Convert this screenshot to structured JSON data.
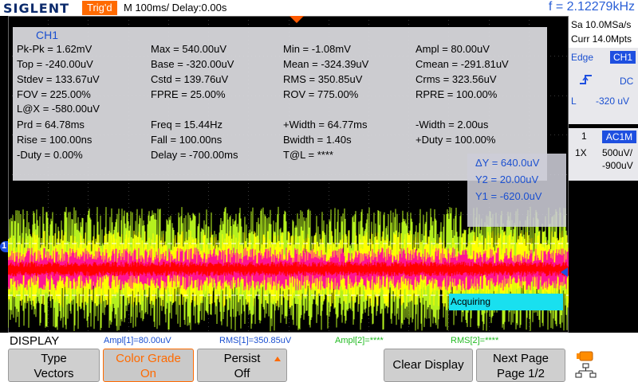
{
  "topbar": {
    "logo": "SIGLENT",
    "trig_status": "Trig'd",
    "timebase": "M 100ms/  Delay:0.00s",
    "frequency": "f = 2.12279kHz"
  },
  "measurements": {
    "title": "CH1",
    "rows": [
      [
        "Pk-Pk = 1.62mV",
        "Max = 540.00uV",
        "Min = -1.08mV",
        "Ampl = 80.00uV"
      ],
      [
        "Top = -240.00uV",
        "Base = -320.00uV",
        "Mean = -324.39uV",
        "Cmean = -291.81uV"
      ],
      [
        "Stdev = 133.67uV",
        "Cstd = 139.76uV",
        "RMS = 350.85uV",
        "Crms = 323.56uV"
      ],
      [
        "FOV = 225.00%",
        "FPRE = 25.00%",
        "ROV = 775.00%",
        "RPRE = 100.00%"
      ],
      [
        "L@X = -580.00uV",
        "",
        "",
        ""
      ],
      [
        "Prd = 64.78ms",
        "Freq = 15.44Hz",
        "+Width = 64.77ms",
        "-Width = 2.00us"
      ],
      [
        "Rise = 100.00ns",
        "Fall = 100.00ns",
        "Bwidth = 1.40s",
        "+Duty = 100.00%"
      ],
      [
        "-Duty = 0.00%",
        "Delay = -700.00ms",
        "T@L = ****",
        ""
      ]
    ]
  },
  "cursors": {
    "delta_y": "ΔY = 640.0uV",
    "y2": "Y2 = 20.00uV",
    "y1": "Y1 = -620.0uV"
  },
  "acquiring": "Acquiring",
  "channel_marker": "1",
  "right_panel": {
    "sample_rate": "Sa 10.0MSa/s",
    "memory": "Curr 14.0Mpts",
    "trigger_type": "Edge",
    "trigger_source": "CH1",
    "trigger_coupling": "DC",
    "trigger_level_label": "L",
    "trigger_level": "-320 uV",
    "channel_number": "1",
    "channel_coupling": "AC1M",
    "probe": "1X",
    "volts_div": "500uV/",
    "offset": "-900uV"
  },
  "bottom": {
    "menu_title": "DISPLAY",
    "meas_ampl1": "Ampl[1]=80.00uV",
    "meas_rms1": "RMS[1]=350.85uV",
    "meas_ampl2": "Ampl[2]=****",
    "meas_rms2": "RMS[2]=****",
    "buttons": [
      {
        "label": "Type",
        "value": "Vectors"
      },
      {
        "label": "Color Grade",
        "value": "On"
      },
      {
        "label": "Persist",
        "value": "Off"
      },
      {
        "label": "Clear Display",
        "value": ""
      },
      {
        "label": "Next Page",
        "value": "Page 1/2"
      }
    ]
  },
  "colors": {
    "accent_orange": "#ff6a00",
    "channel_blue": "#1e4fe0",
    "trace_outer": "#b4f01e",
    "trace_mid": "#ffff00",
    "trace_core": "#ff1493",
    "trace_center": "#ff0000",
    "acquiring_bg": "#19e0ef"
  }
}
